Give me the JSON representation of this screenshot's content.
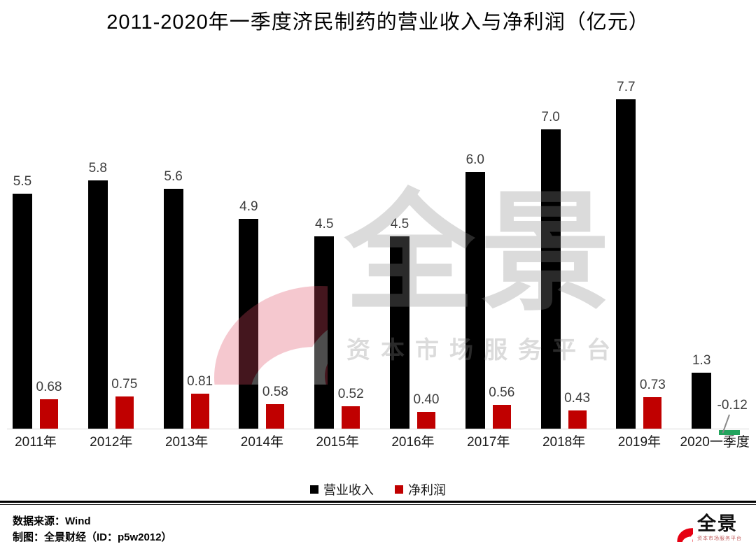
{
  "title": "2011-2020年一季度济民制药的营业收入与净利润（亿元）",
  "chart_data": {
    "type": "bar",
    "title": "2011-2020年一季度济民制药的营业收入与净利润（亿元）",
    "categories": [
      "2011年",
      "2012年",
      "2013年",
      "2014年",
      "2015年",
      "2016年",
      "2017年",
      "2018年",
      "2019年",
      "2020一季度"
    ],
    "series": [
      {
        "name": "营业收入",
        "color": "#000000",
        "values": [
          5.5,
          5.8,
          5.6,
          4.9,
          4.5,
          4.5,
          6.0,
          7.0,
          7.7,
          1.3
        ],
        "labels": [
          "5.5",
          "5.8",
          "5.6",
          "4.9",
          "4.5",
          "4.5",
          "6.0",
          "7.0",
          "7.7",
          "1.3"
        ]
      },
      {
        "name": "净利润",
        "color": "#C00000",
        "negative_color": "#22A45D",
        "values": [
          0.68,
          0.75,
          0.81,
          0.58,
          0.52,
          0.4,
          0.56,
          0.43,
          0.73,
          -0.12
        ],
        "labels": [
          "0.68",
          "0.75",
          "0.81",
          "0.58",
          "0.52",
          "0.40",
          "0.56",
          "0.43",
          "0.73",
          "-0.12"
        ]
      }
    ],
    "ylim": [
      -0.2,
      8.2
    ],
    "grid": false,
    "legend_position": "bottom",
    "axis_color": "#D9D9D9",
    "unit": "亿元"
  },
  "watermark": {
    "brand_text": "全景",
    "subtext": "资本市场服务平台",
    "pink": "#E04B63",
    "gray": "#8A8A8A"
  },
  "footer": {
    "source": "数据来源：Wind",
    "credit": "制图：全景财经（ID：p5w2012）",
    "logo_text": "全景",
    "logo_subtext": "资本市场服务平台",
    "logo_color": "#E60012"
  }
}
